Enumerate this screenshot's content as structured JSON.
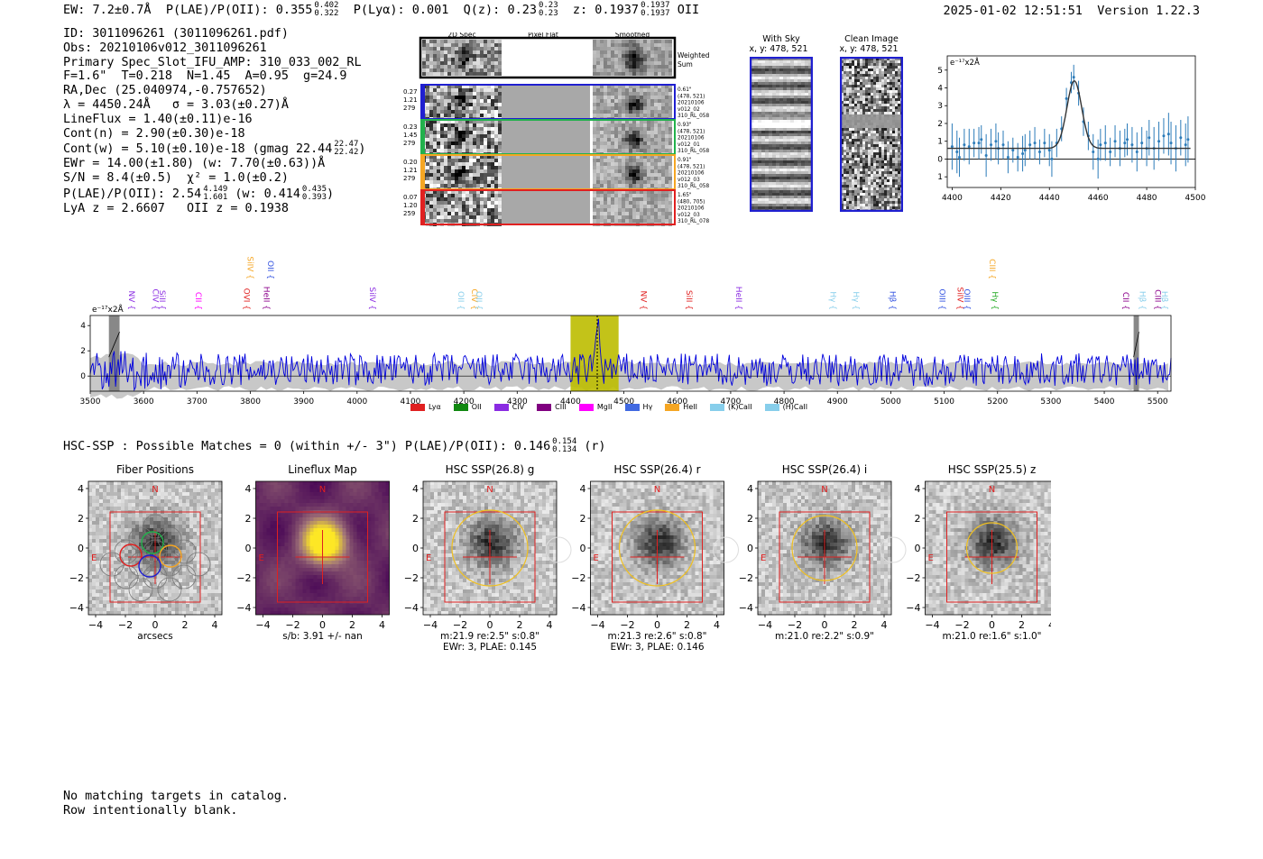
{
  "header": {
    "ew": "EW: 7.2±0.7Å",
    "plae_label": "P(LAE)/P(OII): 0.355",
    "plae_hi": "0.402",
    "plae_lo": "0.322",
    "plya": "P(Lyα): 0.001",
    "qz_label": "Q(z): 0.23",
    "qz_hi": "0.23",
    "qz_lo": "0.23",
    "z_label": "z: 0.1937",
    "z_hi": "0.1937",
    "z_lo": "0.1937",
    "z_line": "OII",
    "timestamp": "2025-01-02 12:51:51",
    "version": "Version 1.22.3"
  },
  "info": {
    "id": "ID: 3011096261 (3011096261.pdf)",
    "obs": "Obs: 20210106v012_3011096261",
    "spec": "Primary Spec_Slot_IFU_AMP: 310_033_002_RL",
    "fiber": "F=1.6\"  T=0.218  N=1.45  A=0.95  g=24.9",
    "radec": "RA,Dec (25.040974,-0.757652)",
    "lambda": "λ = 4450.24Å   σ = 3.03(±0.27)Å",
    "lineflux": "LineFlux = 1.40(±0.11)e-16",
    "contn": "Cont(n) = 2.90(±0.30)e-18",
    "contw": "Cont(w) = 5.10(±0.10)e-18 (gmag 22.44",
    "contw_hi": "22.47",
    "contw_lo": "22.42",
    "contw_end": ")",
    "ewr": "EWr = 14.00(±1.80) (w: 7.70(±0.63))Å",
    "sn": "S/N = 8.4(±0.5)  χ² = 1.0(±0.2)",
    "plae": "P(LAE)/P(OII): 2.54",
    "plae_hi": "4.149",
    "plae_lo": "1.601",
    "plae_w": "(w: 0.414",
    "plae_w_hi": "0.435",
    "plae_w_lo": "0.393",
    "plae_end": ")",
    "lyaz": "LyA z = 2.6607   OII z = 0.1938"
  },
  "stamps": {
    "col_labels": [
      "2D Spec",
      "Pixel Flat",
      "Smoothed"
    ],
    "weighted_label": "Weighted Sum",
    "rows": [
      {
        "left": [
          "0.27",
          "1.21",
          "279"
        ],
        "right": [
          "0.61\"",
          "(478, 521)",
          "20210106",
          "v012_02",
          "310_RL_058"
        ],
        "color": "#1f1fd0"
      },
      {
        "left": [
          "0.23",
          "1.45",
          "279"
        ],
        "right": [
          "0.93\"",
          "(478, 521)",
          "20210106",
          "v012_01",
          "310_RL_058"
        ],
        "color": "#22b14c"
      },
      {
        "left": [
          "0.20",
          "1.21",
          "279"
        ],
        "right": [
          "0.91\"",
          "(478, 521)",
          "20210106",
          "v012_03",
          "310_RL_058"
        ],
        "color": "#f5a623"
      },
      {
        "left": [
          "0.07",
          "1.20",
          "259"
        ],
        "right": [
          "1.65\"",
          "(480, 705)",
          "20210106",
          "v012_03",
          "310_RL_078"
        ],
        "color": "#e02020"
      }
    ]
  },
  "sky": {
    "title": "With Sky",
    "coords": "x, y: 478, 521"
  },
  "clean": {
    "title": "Clean Image",
    "coords": "x, y: 478, 521"
  },
  "chart_data": [
    {
      "type": "scatter",
      "title": "",
      "ylabel_unit": "e⁻¹⁷x2Å",
      "xlim": [
        4398,
        4500
      ],
      "ylim": [
        -1.6,
        5.8
      ],
      "xticks": [
        4400,
        4420,
        4440,
        4460,
        4480,
        4500
      ],
      "yticks": [
        -1,
        0,
        1,
        2,
        3,
        4,
        5
      ],
      "points": [
        [
          4400,
          0.7,
          1.3
        ],
        [
          4402,
          0.4,
          1.2
        ],
        [
          4403,
          0.1,
          1.1
        ],
        [
          4405,
          0.8,
          0.9
        ],
        [
          4407,
          0.7,
          1.0
        ],
        [
          4409,
          0.9,
          0.8
        ],
        [
          4411,
          0.9,
          0.9
        ],
        [
          4412,
          1.1,
          0.8
        ],
        [
          4414,
          0.2,
          1.2
        ],
        [
          4416,
          0.8,
          0.9
        ],
        [
          4418,
          1.0,
          1.0
        ],
        [
          4419,
          0.6,
          0.9
        ],
        [
          4421,
          0.8,
          0.8
        ],
        [
          4423,
          0.1,
          0.9
        ],
        [
          4425,
          0.5,
          0.7
        ],
        [
          4427,
          0.1,
          0.8
        ],
        [
          4429,
          0.3,
          1.0
        ],
        [
          4430,
          0.5,
          0.9
        ],
        [
          4432,
          0.8,
          0.8
        ],
        [
          4434,
          0.9,
          0.9
        ],
        [
          4436,
          0.4,
          0.7
        ],
        [
          4438,
          0.9,
          0.8
        ],
        [
          4440,
          0.5,
          0.9
        ],
        [
          4441,
          0.0,
          1.0
        ],
        [
          4443,
          0.9,
          0.8
        ],
        [
          4445,
          1.7,
          0.7
        ],
        [
          4447,
          3.4,
          0.6
        ],
        [
          4449,
          4.3,
          0.6
        ],
        [
          4450,
          4.6,
          0.7
        ],
        [
          4452,
          3.7,
          0.7
        ],
        [
          4454,
          2.1,
          0.8
        ],
        [
          4456,
          1.3,
          0.8
        ],
        [
          4458,
          0.4,
          1.0
        ],
        [
          4460,
          0.0,
          1.1
        ],
        [
          4461,
          0.8,
          0.9
        ],
        [
          4463,
          0.9,
          1.0
        ],
        [
          4465,
          0.4,
          0.8
        ],
        [
          4467,
          1.0,
          0.9
        ],
        [
          4469,
          0.6,
          1.0
        ],
        [
          4471,
          0.9,
          0.8
        ],
        [
          4472,
          1.1,
          0.9
        ],
        [
          4474,
          0.8,
          1.0
        ],
        [
          4476,
          0.4,
          1.1
        ],
        [
          4478,
          0.9,
          0.9
        ],
        [
          4480,
          0.6,
          1.0
        ],
        [
          4481,
          1.2,
          1.0
        ],
        [
          4483,
          0.6,
          1.2
        ],
        [
          4485,
          1.0,
          1.1
        ],
        [
          4487,
          1.3,
          1.0
        ],
        [
          4489,
          1.4,
          1.2
        ],
        [
          4490,
          0.9,
          1.2
        ],
        [
          4492,
          0.6,
          1.3
        ],
        [
          4494,
          1.2,
          1.0
        ],
        [
          4496,
          0.8,
          1.2
        ],
        [
          4497,
          1.1,
          1.3
        ]
      ],
      "model": {
        "center": 4450.24,
        "sigma": 3.03,
        "amp": 3.8,
        "continuum": 0.6
      }
    },
    {
      "type": "line",
      "ylabel_unit": "e⁻¹⁷x2Å",
      "xlim": [
        3500,
        5525
      ],
      "ylim": [
        -1.2,
        4.8
      ],
      "xticks": [
        3500,
        3600,
        3700,
        3800,
        3900,
        4000,
        4100,
        4200,
        4300,
        4400,
        4500,
        4600,
        4700,
        4800,
        4900,
        5000,
        5100,
        5200,
        5300,
        5400,
        5500
      ],
      "yticks": [
        0,
        2,
        4
      ],
      "highlight_band": [
        4400,
        4490
      ],
      "marker_line": 4450,
      "masked_bands": [
        [
          3535,
          3555
        ],
        [
          5455,
          5465
        ]
      ],
      "series": [
        {
          "name": "spectrum",
          "color": "#0000dd"
        }
      ],
      "line_labels": [
        {
          "name": "NV",
          "x": 3568,
          "color": "#8a2be2",
          "row": 1
        },
        {
          "name": "CIV",
          "x": 3612,
          "color": "#8a2be2",
          "row": 1
        },
        {
          "name": "SiII",
          "x": 3625,
          "color": "#8a2be2",
          "row": 1
        },
        {
          "name": "CII",
          "x": 3693,
          "color": "#ff00ff",
          "row": 1
        },
        {
          "name": "SiIV",
          "x": 3790,
          "color": "#f5a623",
          "row": 0
        },
        {
          "name": "OVI",
          "x": 3783,
          "color": "#e02020",
          "row": 1
        },
        {
          "name": "HeII",
          "x": 3820,
          "color": "#8b008b",
          "row": 1
        },
        {
          "name": "OII",
          "x": 3828,
          "color": "#3050e0",
          "row": 0
        },
        {
          "name": "SiIV",
          "x": 4019,
          "color": "#8a2be2",
          "row": 1
        },
        {
          "name": "OII",
          "x": 4185,
          "color": "#87ceeb",
          "row": 1
        },
        {
          "name": "CIV",
          "x": 4210,
          "color": "#f5a623",
          "row": 1
        },
        {
          "name": "OII",
          "x": 4218,
          "color": "#87ceeb",
          "row": 1
        },
        {
          "name": "NV",
          "x": 4527,
          "color": "#e02020",
          "row": 1
        },
        {
          "name": "SiII",
          "x": 4612,
          "color": "#e02020",
          "row": 1
        },
        {
          "name": "HeII",
          "x": 4705,
          "color": "#8a2be2",
          "row": 1
        },
        {
          "name": "Hγ",
          "x": 4882,
          "color": "#87ceeb",
          "row": 1
        },
        {
          "name": "Hγ",
          "x": 4925,
          "color": "#87ceeb",
          "row": 1
        },
        {
          "name": "Hβ",
          "x": 4993,
          "color": "#3050e0",
          "row": 1
        },
        {
          "name": "OIII",
          "x": 5086,
          "color": "#3050e0",
          "row": 1
        },
        {
          "name": "SiIV",
          "x": 5120,
          "color": "#e02020",
          "row": 1
        },
        {
          "name": "OIII",
          "x": 5133,
          "color": "#3050e0",
          "row": 1
        },
        {
          "name": "CIII",
          "x": 5180,
          "color": "#f5a623",
          "row": 0
        },
        {
          "name": "Hγ",
          "x": 5185,
          "color": "#22aa22",
          "row": 1
        },
        {
          "name": "CII",
          "x": 5430,
          "color": "#8b008b",
          "row": 1
        },
        {
          "name": "Hβ",
          "x": 5462,
          "color": "#87ceeb",
          "row": 1
        },
        {
          "name": "CIII",
          "x": 5490,
          "color": "#8b008b",
          "row": 1
        },
        {
          "name": "Hβ",
          "x": 5503,
          "color": "#87ceeb",
          "row": 1
        }
      ]
    }
  ],
  "legend": [
    {
      "label": "Lyα",
      "color": "#e02020"
    },
    {
      "label": "OII",
      "color": "#118811"
    },
    {
      "label": "CIV",
      "color": "#8a2be2"
    },
    {
      "label": "CIII",
      "color": "#800080"
    },
    {
      "label": "MgII",
      "color": "#ff00ff"
    },
    {
      "label": "Hγ",
      "color": "#4169e1"
    },
    {
      "label": "HeII",
      "color": "#f5a623"
    },
    {
      "label": "(K)CaII",
      "color": "#87ceeb"
    },
    {
      "label": "(H)CaII",
      "color": "#87ceeb"
    }
  ],
  "hsc": {
    "text": "HSC-SSP : Possible Matches = 0 (within +/- 3\")  P(LAE)/P(OII): 0.146",
    "hi": "0.154",
    "lo": "0.134",
    "band": "(r)"
  },
  "cutouts": [
    {
      "title": "Fiber Positions",
      "caption1": "arcsecs",
      "caption2": ""
    },
    {
      "title": "Lineflux Map",
      "caption1": "s/b: 3.91 +/- nan",
      "caption2": ""
    },
    {
      "title": "HSC SSP(26.8) g",
      "caption1": "m:21.9  re:2.5\"  s:0.8\"",
      "caption2": "EWr: 3, PLAE: 0.145"
    },
    {
      "title": "HSC SSP(26.4) r",
      "caption1": "m:21.3  re:2.6\"  s:0.8\"",
      "caption2": "EWr: 3, PLAE: 0.146"
    },
    {
      "title": "HSC SSP(26.4) i",
      "caption1": "m:21.0  re:2.2\"  s:0.9\"",
      "caption2": ""
    },
    {
      "title": "HSC SSP(25.5) z",
      "caption1": "m:21.0  re:1.6\"  s:1.0\"",
      "caption2": ""
    }
  ],
  "cutout_axes": {
    "ticks": [
      "4",
      "2",
      "0",
      "−2",
      "−4"
    ],
    "xticks": [
      "−4",
      "−2",
      "0",
      "2",
      "4"
    ],
    "north": "N",
    "east": "E"
  },
  "footer": {
    "line1": "No matching targets in catalog.",
    "line2": "Row intentionally blank."
  }
}
